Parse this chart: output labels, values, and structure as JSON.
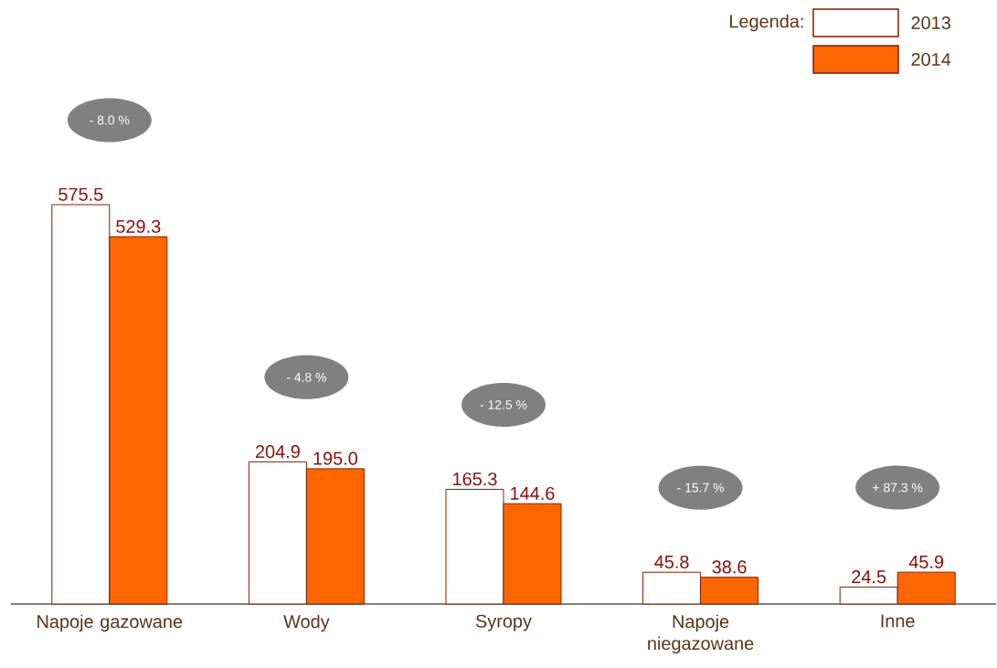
{
  "chart_data": {
    "type": "bar",
    "categories": [
      "Napoje gazowane",
      "Wody",
      "Syropy",
      "Napoje niegazowane",
      "Inne"
    ],
    "series": [
      {
        "name": "2013",
        "color": "#ffffff",
        "values": [
          575.5,
          204.9,
          165.3,
          45.8,
          24.5
        ],
        "value_labels": [
          "575.5",
          "204.9",
          "165.3",
          "45.8",
          "24.5"
        ]
      },
      {
        "name": "2014",
        "color": "#ff6600",
        "values": [
          529.3,
          195.0,
          144.6,
          38.6,
          45.9
        ],
        "value_labels": [
          "529.3",
          "195.0",
          "144.6",
          "38.6",
          "45.9"
        ]
      }
    ],
    "legend": "top right",
    "legend_title": "Legenda:",
    "annotations": [
      "- 8.0 %",
      "- 4.8 %",
      "- 12.5 %",
      "- 15.7 %",
      "+ 87.3 %"
    ]
  }
}
